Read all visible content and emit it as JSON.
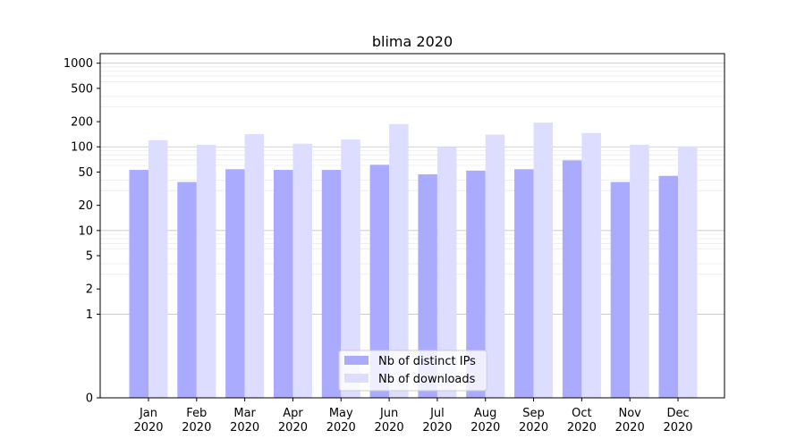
{
  "chart_data": {
    "type": "bar",
    "title": "blima 2020",
    "categories": [
      "Jan\n2020",
      "Feb\n2020",
      "Mar\n2020",
      "Apr\n2020",
      "May\n2020",
      "Jun\n2020",
      "Jul\n2020",
      "Aug\n2020",
      "Sep\n2020",
      "Oct\n2020",
      "Nov\n2020",
      "Dec\n2020"
    ],
    "series": [
      {
        "name": "Nb of distinct IPs",
        "color": "#aaaaff",
        "values": [
          53,
          38,
          54,
          53,
          53,
          61,
          47,
          52,
          54,
          69,
          38,
          45
        ]
      },
      {
        "name": "Nb of downloads",
        "color": "#ddddff",
        "values": [
          120,
          106,
          142,
          109,
          123,
          187,
          100,
          140,
          195,
          146,
          106,
          101
        ]
      }
    ],
    "yscale": "symlog",
    "ylim": [
      0,
      1300
    ],
    "yticks": [
      0,
      1,
      2,
      5,
      10,
      20,
      50,
      100,
      200,
      500,
      1000
    ],
    "grid": true,
    "legend_position": "lower-center",
    "xlabel": "",
    "ylabel": ""
  }
}
